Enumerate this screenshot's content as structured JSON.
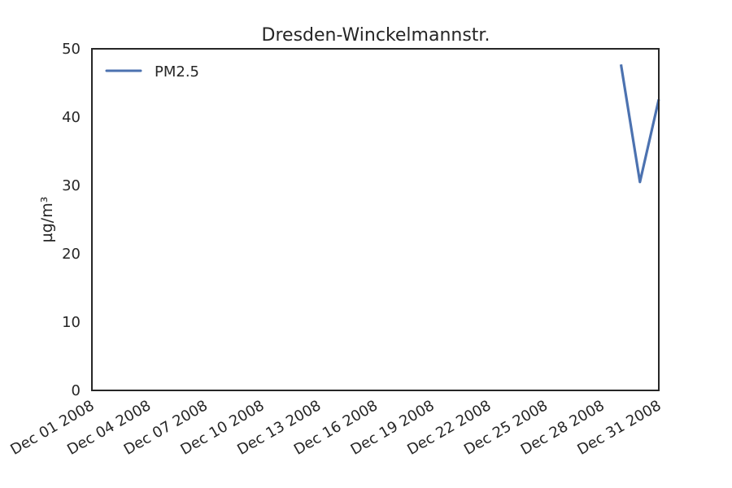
{
  "chart_data": {
    "type": "line",
    "title": "Dresden-Winckelmannstr.",
    "xlabel": "",
    "ylabel": "µg/m³",
    "x_range": [
      "2008-12-01",
      "2008-12-31"
    ],
    "ylim": [
      0,
      50
    ],
    "yticks": [
      0,
      10,
      20,
      30,
      40,
      50
    ],
    "xticks": [
      {
        "date": "2008-12-01",
        "label": "Dec 01 2008"
      },
      {
        "date": "2008-12-04",
        "label": "Dec 04 2008"
      },
      {
        "date": "2008-12-07",
        "label": "Dec 07 2008"
      },
      {
        "date": "2008-12-10",
        "label": "Dec 10 2008"
      },
      {
        "date": "2008-12-13",
        "label": "Dec 13 2008"
      },
      {
        "date": "2008-12-16",
        "label": "Dec 16 2008"
      },
      {
        "date": "2008-12-19",
        "label": "Dec 19 2008"
      },
      {
        "date": "2008-12-22",
        "label": "Dec 22 2008"
      },
      {
        "date": "2008-12-25",
        "label": "Dec 25 2008"
      },
      {
        "date": "2008-12-28",
        "label": "Dec 28 2008"
      },
      {
        "date": "2008-12-31",
        "label": "Dec 31 2008"
      }
    ],
    "grid": false,
    "legend_position": "top-left",
    "series": [
      {
        "name": "PM2.5",
        "color": "#4c72b0",
        "points": [
          {
            "x": "2008-12-29",
            "y": 47.7
          },
          {
            "x": "2008-12-30",
            "y": 30.5
          },
          {
            "x": "2008-12-31",
            "y": 42.6
          }
        ]
      }
    ]
  }
}
